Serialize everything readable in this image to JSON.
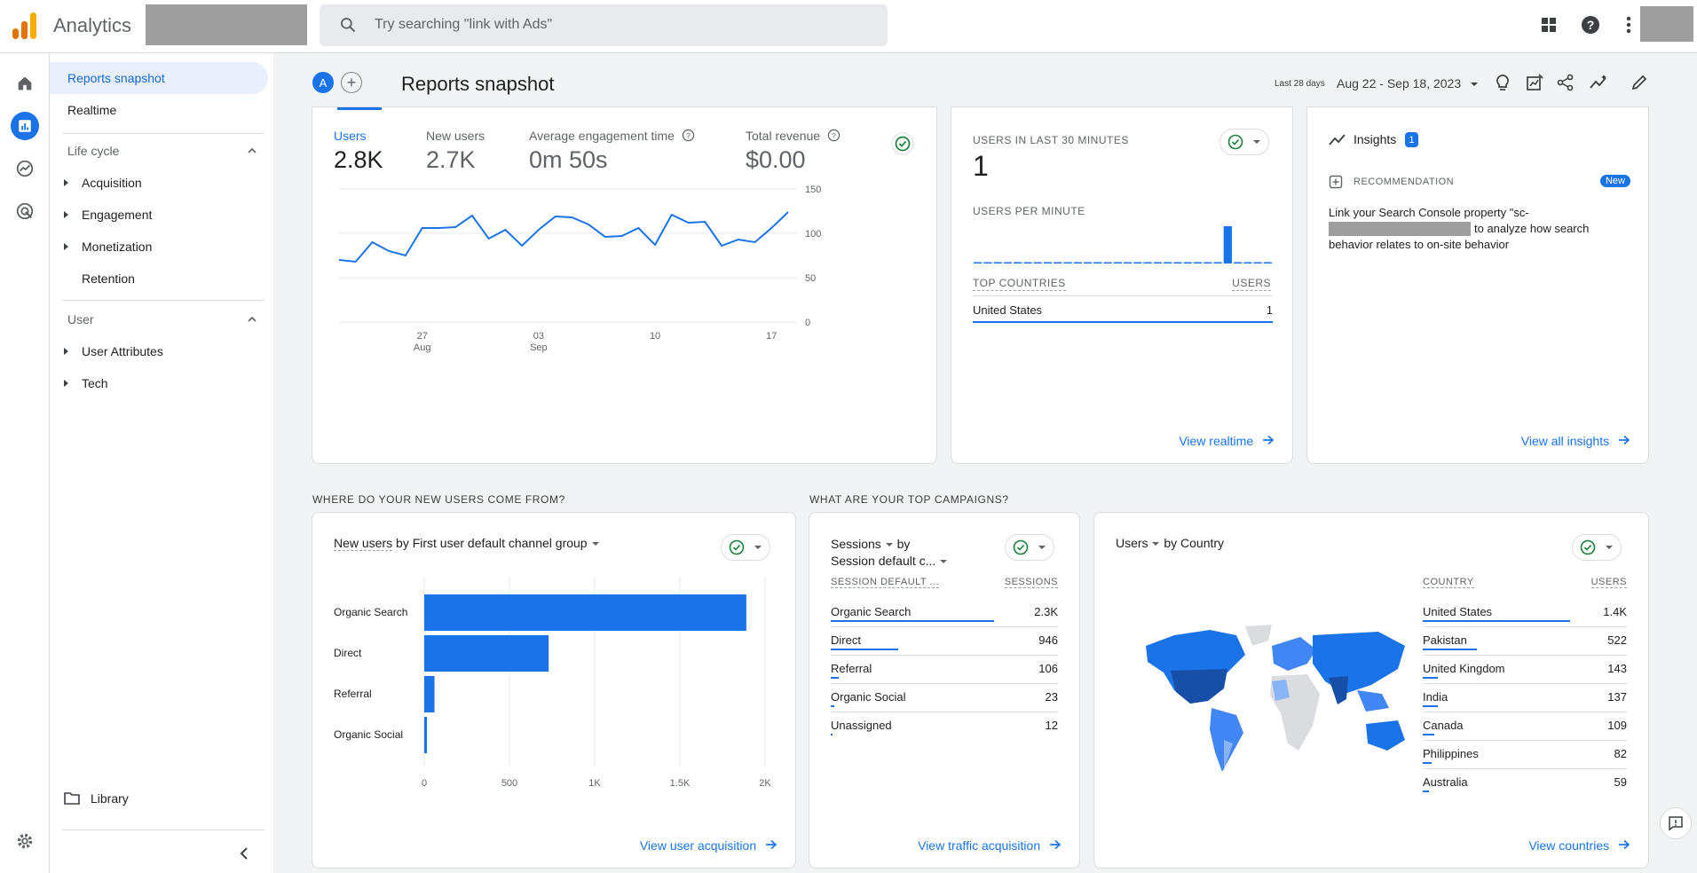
{
  "app": {
    "title": "Analytics"
  },
  "search": {
    "placeholder": "Try searching \"link with Ads\""
  },
  "sidenav": {
    "top_items": [
      {
        "label": "Reports snapshot",
        "active": true
      },
      {
        "label": "Realtime",
        "active": false
      }
    ],
    "lifecycle": {
      "label": "Life cycle",
      "items": [
        "Acquisition",
        "Engagement",
        "Monetization",
        "Retention"
      ]
    },
    "user": {
      "label": "User",
      "items": [
        "User Attributes",
        "Tech"
      ]
    },
    "library": "Library"
  },
  "header": {
    "avatar_letter": "A",
    "title": "Reports snapshot",
    "date_label": "Last 28 days",
    "date_range": "Aug 22 - Sep 18, 2023"
  },
  "overview": {
    "metrics": [
      {
        "label": "Users",
        "value": "2.8K",
        "active": true
      },
      {
        "label": "New users",
        "value": "2.7K",
        "active": false
      },
      {
        "label": "Average engagement time",
        "value": "0m 50s",
        "active": false
      },
      {
        "label": "Total revenue",
        "value": "$0.00",
        "active": false
      }
    ],
    "chart_data": {
      "type": "line",
      "title": "Users",
      "ylim": [
        0,
        150
      ],
      "yticks": [
        "150",
        "100",
        "50",
        "0"
      ],
      "xticks": [
        {
          "top": "27",
          "bottom": "Aug"
        },
        {
          "top": "03",
          "bottom": "Sep"
        },
        {
          "top": "10",
          "bottom": ""
        },
        {
          "top": "17",
          "bottom": ""
        }
      ],
      "series": [
        {
          "name": "Users",
          "values": [
            70,
            68,
            90,
            80,
            75,
            106,
            106,
            107,
            120,
            94,
            104,
            86,
            104,
            119,
            118,
            110,
            96,
            97,
            106,
            87,
            121,
            112,
            113,
            86,
            93,
            90,
            106,
            124
          ]
        }
      ]
    }
  },
  "realtime": {
    "users_label": "USERS IN LAST 30 MINUTES",
    "users_value": "1",
    "per_minute_label": "USERS PER MINUTE",
    "per_minute_values": [
      0,
      0,
      0,
      0,
      0,
      0,
      0,
      0,
      0,
      0,
      0,
      0,
      0,
      0,
      0,
      0,
      0,
      0,
      0,
      0,
      0,
      0,
      0,
      0,
      0,
      1,
      0,
      0,
      0,
      0
    ],
    "table_headers": [
      "TOP COUNTRIES",
      "USERS"
    ],
    "rows": [
      {
        "country": "United States",
        "users": "1"
      }
    ],
    "link": "View realtime"
  },
  "insights": {
    "title": "Insights",
    "count": "1",
    "rec_label": "RECOMMENDATION",
    "new_badge": "New",
    "text_line1": "Link your Search Console property \"sc-",
    "text_line2": "to analyze how search",
    "text_line3": "behavior relates to on-site behavior",
    "link": "View all insights"
  },
  "sections": {
    "new_users": "WHERE DO YOUR NEW USERS COME FROM?",
    "campaigns": "WHAT ARE YOUR TOP CAMPAIGNS?"
  },
  "acquisition": {
    "metric": "New users",
    "by_label": "by First user default channel group",
    "chart_data": {
      "type": "bar",
      "orientation": "horizontal",
      "categories": [
        "Organic Search",
        "Direct",
        "Referral",
        "Organic Social"
      ],
      "values": [
        1890,
        730,
        60,
        12
      ],
      "xlim": [
        0,
        2000
      ],
      "xticks": [
        "0",
        "500",
        "1K",
        "1.5K",
        "2K"
      ]
    },
    "link": "View user acquisition"
  },
  "campaigns": {
    "metric": "Sessions",
    "by": "by",
    "dimension": "Session default c...",
    "headers": [
      "SESSION DEFAULT ...",
      "SESSIONS"
    ],
    "rows": [
      {
        "name": "Organic Search",
        "value": "2.3K",
        "frac": 1.0
      },
      {
        "name": "Direct",
        "value": "946",
        "frac": 0.41
      },
      {
        "name": "Referral",
        "value": "106",
        "frac": 0.05
      },
      {
        "name": "Organic Social",
        "value": "23",
        "frac": 0.02
      },
      {
        "name": "Unassigned",
        "value": "12",
        "frac": 0.01
      }
    ],
    "link": "View traffic acquisition"
  },
  "countries": {
    "metric": "Users",
    "by": "by Country",
    "headers": [
      "COUNTRY",
      "USERS"
    ],
    "rows": [
      {
        "name": "United States",
        "value": "1.4K",
        "frac": 1.0
      },
      {
        "name": "Pakistan",
        "value": "522",
        "frac": 0.37
      },
      {
        "name": "United Kingdom",
        "value": "143",
        "frac": 0.1
      },
      {
        "name": "India",
        "value": "137",
        "frac": 0.1
      },
      {
        "name": "Canada",
        "value": "109",
        "frac": 0.08
      },
      {
        "name": "Philippines",
        "value": "82",
        "frac": 0.06
      },
      {
        "name": "Australia",
        "value": "59",
        "frac": 0.04
      }
    ],
    "link": "View countries"
  },
  "colors": {
    "accent": "#1a73e8",
    "check": "#188038"
  }
}
